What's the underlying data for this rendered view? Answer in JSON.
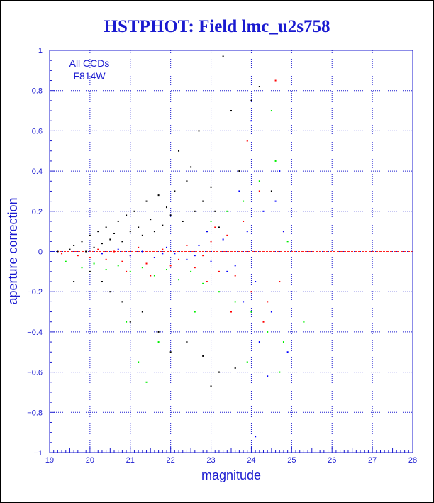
{
  "chart_data": {
    "type": "scatter",
    "title": "HSTPHOT: Field lmc_u2s758",
    "xlabel": "magnitude",
    "ylabel": "aperture correction",
    "xlim": [
      19,
      28
    ],
    "ylim": [
      -1,
      1
    ],
    "x_ticks": [
      "19",
      "20",
      "21",
      "22",
      "23",
      "24",
      "25",
      "26",
      "27",
      "28"
    ],
    "y_ticks": [
      "1",
      "0.8",
      "0.6",
      "0.4",
      "0.2",
      "0",
      "−0.2",
      "−0.4",
      "−0.6",
      "−0.8",
      "−1"
    ],
    "grid": true,
    "annotations": [
      "All CCDs",
      "F814W"
    ],
    "colors": {
      "axis": "#1a1ad0",
      "grid": "#1a1ad0",
      "frame": "#000000",
      "zero_line": "#ff2020"
    },
    "series": [
      {
        "color": "#000000",
        "points": [
          [
            19.2,
            0.0
          ],
          [
            19.5,
            0.01
          ],
          [
            19.6,
            0.03
          ],
          [
            19.8,
            0.05
          ],
          [
            19.9,
            0.0
          ],
          [
            20.0,
            0.08
          ],
          [
            20.1,
            0.02
          ],
          [
            20.2,
            0.1
          ],
          [
            20.3,
            0.04
          ],
          [
            20.4,
            0.12
          ],
          [
            20.5,
            0.06
          ],
          [
            20.6,
            0.09
          ],
          [
            20.7,
            0.15
          ],
          [
            20.8,
            0.05
          ],
          [
            20.9,
            0.18
          ],
          [
            21.0,
            0.1
          ],
          [
            21.1,
            0.2
          ],
          [
            21.2,
            0.12
          ],
          [
            21.3,
            0.08
          ],
          [
            21.4,
            0.25
          ],
          [
            21.5,
            0.16
          ],
          [
            21.6,
            0.1
          ],
          [
            21.7,
            0.28
          ],
          [
            21.8,
            0.13
          ],
          [
            21.9,
            0.22
          ],
          [
            22.0,
            0.18
          ],
          [
            22.1,
            0.3
          ],
          [
            22.2,
            0.5
          ],
          [
            22.3,
            0.15
          ],
          [
            22.4,
            0.35
          ],
          [
            22.5,
            0.42
          ],
          [
            22.6,
            0.2
          ],
          [
            22.7,
            0.6
          ],
          [
            22.8,
            0.25
          ],
          [
            22.9,
            0.1
          ],
          [
            23.0,
            0.32
          ],
          [
            23.1,
            0.2
          ],
          [
            23.2,
            0.12
          ],
          [
            23.3,
            0.97
          ],
          [
            23.5,
            0.7
          ],
          [
            23.7,
            0.4
          ],
          [
            24.0,
            0.75
          ],
          [
            24.2,
            0.82
          ],
          [
            24.5,
            0.3
          ],
          [
            20.3,
            -0.15
          ],
          [
            20.8,
            -0.25
          ],
          [
            21.0,
            -0.35
          ],
          [
            21.3,
            -0.3
          ],
          [
            21.7,
            -0.4
          ],
          [
            22.0,
            -0.5
          ],
          [
            22.4,
            -0.45
          ],
          [
            22.8,
            -0.52
          ],
          [
            23.0,
            -0.67
          ],
          [
            23.2,
            -0.6
          ],
          [
            23.6,
            -0.58
          ],
          [
            19.6,
            -0.15
          ],
          [
            20.0,
            -0.1
          ],
          [
            20.5,
            -0.2
          ]
        ]
      },
      {
        "color": "#ff0000",
        "points": [
          [
            19.3,
            -0.01
          ],
          [
            19.7,
            -0.02
          ],
          [
            20.0,
            -0.03
          ],
          [
            20.2,
            0.01
          ],
          [
            20.4,
            -0.04
          ],
          [
            20.6,
            0.0
          ],
          [
            20.8,
            -0.05
          ],
          [
            21.0,
            -0.02
          ],
          [
            21.2,
            0.02
          ],
          [
            21.4,
            -0.06
          ],
          [
            21.6,
            -0.03
          ],
          [
            21.8,
            0.01
          ],
          [
            22.0,
            -0.07
          ],
          [
            22.2,
            -0.04
          ],
          [
            22.4,
            0.03
          ],
          [
            22.6,
            -0.08
          ],
          [
            22.8,
            -0.02
          ],
          [
            23.0,
            0.05
          ],
          [
            23.2,
            -0.1
          ],
          [
            23.4,
            0.08
          ],
          [
            23.6,
            -0.12
          ],
          [
            23.8,
            0.15
          ],
          [
            24.0,
            -0.2
          ],
          [
            24.2,
            0.3
          ],
          [
            24.4,
            -0.25
          ],
          [
            24.6,
            0.85
          ],
          [
            24.8,
            0.1
          ],
          [
            23.9,
            0.55
          ],
          [
            24.3,
            -0.35
          ],
          [
            23.5,
            -0.3
          ],
          [
            22.9,
            -0.15
          ],
          [
            21.5,
            -0.12
          ],
          [
            20.9,
            -0.1
          ],
          [
            24.7,
            -0.15
          ],
          [
            23.1,
            0.12
          ]
        ]
      },
      {
        "color": "#0000ff",
        "points": [
          [
            20.3,
            -0.01
          ],
          [
            20.7,
            0.01
          ],
          [
            21.0,
            -0.02
          ],
          [
            21.3,
            0.0
          ],
          [
            21.6,
            -0.03
          ],
          [
            21.9,
            0.02
          ],
          [
            22.1,
            -0.01
          ],
          [
            22.4,
            -0.04
          ],
          [
            22.7,
            0.03
          ],
          [
            23.0,
            -0.05
          ],
          [
            23.3,
            0.06
          ],
          [
            23.6,
            -0.07
          ],
          [
            23.9,
            0.1
          ],
          [
            24.1,
            -0.15
          ],
          [
            24.3,
            0.2
          ],
          [
            24.5,
            -0.3
          ],
          [
            24.7,
            0.4
          ],
          [
            24.9,
            -0.5
          ],
          [
            24.0,
            0.65
          ],
          [
            24.4,
            -0.62
          ],
          [
            23.8,
            -0.25
          ],
          [
            23.4,
            -0.1
          ],
          [
            22.9,
            0.1
          ],
          [
            24.6,
            0.25
          ],
          [
            24.2,
            -0.45
          ],
          [
            23.7,
            0.3
          ],
          [
            22.6,
            -0.02
          ],
          [
            21.8,
            -0.01
          ],
          [
            24.8,
            0.1
          ],
          [
            24.1,
            -0.92
          ]
        ]
      },
      {
        "color": "#00ee00",
        "points": [
          [
            19.4,
            -0.05
          ],
          [
            19.8,
            -0.08
          ],
          [
            20.1,
            -0.06
          ],
          [
            20.4,
            -0.09
          ],
          [
            20.7,
            -0.07
          ],
          [
            21.0,
            -0.1
          ],
          [
            21.3,
            -0.08
          ],
          [
            21.6,
            -0.12
          ],
          [
            21.9,
            -0.09
          ],
          [
            22.2,
            -0.14
          ],
          [
            22.5,
            -0.1
          ],
          [
            22.8,
            -0.16
          ],
          [
            23.0,
            0.15
          ],
          [
            23.2,
            -0.2
          ],
          [
            23.4,
            0.2
          ],
          [
            23.6,
            -0.25
          ],
          [
            23.8,
            0.25
          ],
          [
            24.0,
            -0.3
          ],
          [
            24.2,
            0.35
          ],
          [
            24.4,
            -0.4
          ],
          [
            24.6,
            0.45
          ],
          [
            24.8,
            -0.45
          ],
          [
            21.2,
            -0.55
          ],
          [
            21.4,
            -0.65
          ],
          [
            20.9,
            -0.35
          ],
          [
            21.7,
            -0.45
          ],
          [
            24.5,
            0.7
          ],
          [
            24.7,
            -0.6
          ],
          [
            24.9,
            0.05
          ],
          [
            25.3,
            -0.35
          ],
          [
            23.9,
            -0.55
          ],
          [
            22.6,
            -0.3
          ]
        ]
      }
    ]
  }
}
